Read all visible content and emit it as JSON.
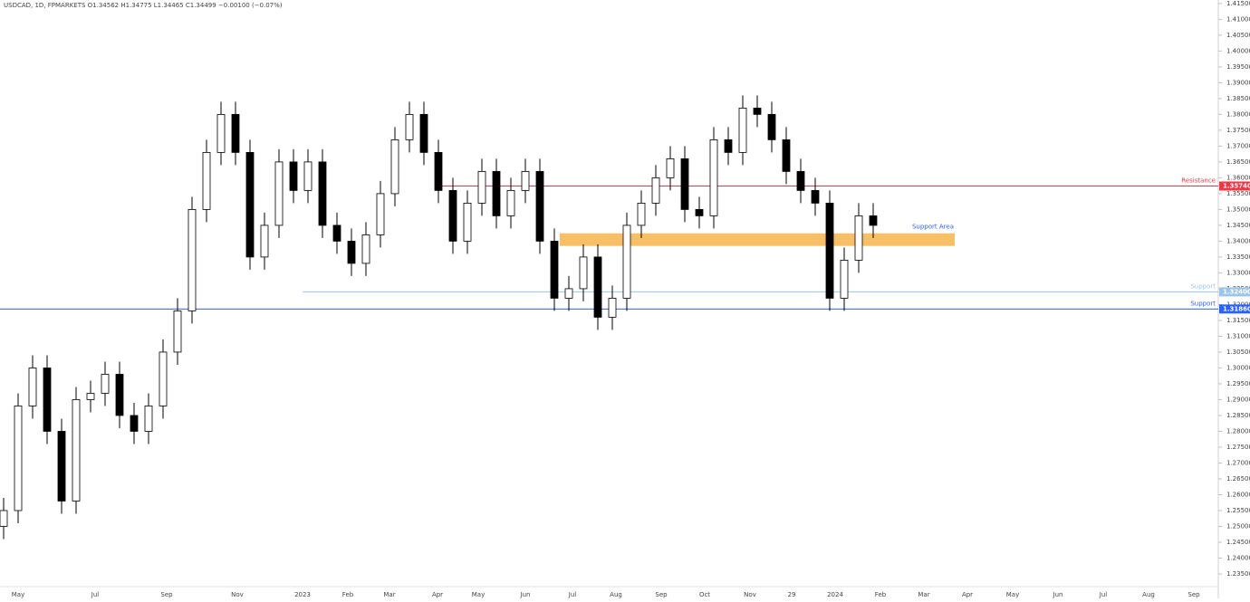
{
  "chart_data": {
    "type": "candlestick",
    "title": "USDCAD, 1D, FPMARKETS  O1.34562 H1.34775 L1.34465 C1.34499 −0.00100 (−0.07%)",
    "categories": [
      "May",
      "Jul",
      "Sep",
      "Nov",
      "2023",
      "Feb",
      "Mar",
      "Apr",
      "May",
      "Jun",
      "Jul",
      "Aug",
      "Sep",
      "Oct",
      "Nov",
      "29",
      "2024",
      "Feb",
      "Mar",
      "Apr",
      "May",
      "Jun",
      "Jul",
      "Aug",
      "Sep"
    ],
    "series": {
      "up_color": "#ffffff",
      "down_color": "#000000",
      "outline": "#000000",
      "open": [
        1.25,
        1.255,
        1.288,
        1.3,
        1.28,
        1.258,
        1.29,
        1.292,
        1.298,
        1.285,
        1.28,
        1.288,
        1.305,
        1.318,
        1.35,
        1.368,
        1.38,
        1.368,
        1.335,
        1.345,
        1.365,
        1.356,
        1.365,
        1.345,
        1.34,
        1.333,
        1.342,
        1.355,
        1.372,
        1.38,
        1.368,
        1.356,
        1.34,
        1.352,
        1.362,
        1.348,
        1.356,
        1.362,
        1.34,
        1.322,
        1.325,
        1.335,
        1.316,
        1.322,
        1.345,
        1.352,
        1.36,
        1.366,
        1.35,
        1.348,
        1.372,
        1.368,
        1.382,
        1.38,
        1.372,
        1.362,
        1.356,
        1.352,
        1.322,
        1.334,
        1.348
      ],
      "high": [
        1.259,
        1.292,
        1.304,
        1.304,
        1.284,
        1.294,
        1.296,
        1.302,
        1.302,
        1.289,
        1.292,
        1.309,
        1.322,
        1.354,
        1.372,
        1.384,
        1.384,
        1.372,
        1.349,
        1.369,
        1.369,
        1.369,
        1.369,
        1.349,
        1.344,
        1.346,
        1.359,
        1.376,
        1.384,
        1.384,
        1.372,
        1.36,
        1.356,
        1.366,
        1.366,
        1.36,
        1.366,
        1.366,
        1.344,
        1.329,
        1.339,
        1.339,
        1.326,
        1.349,
        1.356,
        1.364,
        1.37,
        1.37,
        1.354,
        1.376,
        1.376,
        1.386,
        1.386,
        1.384,
        1.376,
        1.366,
        1.36,
        1.356,
        1.338,
        1.352,
        1.352
      ],
      "low": [
        1.246,
        1.251,
        1.284,
        1.276,
        1.254,
        1.254,
        1.286,
        1.288,
        1.281,
        1.276,
        1.276,
        1.284,
        1.301,
        1.314,
        1.346,
        1.364,
        1.364,
        1.331,
        1.331,
        1.341,
        1.352,
        1.352,
        1.341,
        1.336,
        1.329,
        1.329,
        1.338,
        1.351,
        1.368,
        1.364,
        1.352,
        1.336,
        1.336,
        1.348,
        1.344,
        1.344,
        1.352,
        1.336,
        1.318,
        1.318,
        1.321,
        1.312,
        1.312,
        1.318,
        1.341,
        1.348,
        1.356,
        1.346,
        1.344,
        1.344,
        1.364,
        1.364,
        1.376,
        1.368,
        1.358,
        1.352,
        1.348,
        1.318,
        1.318,
        1.33,
        1.341
      ],
      "close": [
        1.255,
        1.288,
        1.3,
        1.28,
        1.258,
        1.29,
        1.292,
        1.298,
        1.285,
        1.28,
        1.288,
        1.305,
        1.318,
        1.35,
        1.368,
        1.38,
        1.368,
        1.335,
        1.345,
        1.365,
        1.356,
        1.365,
        1.345,
        1.34,
        1.333,
        1.342,
        1.355,
        1.372,
        1.38,
        1.368,
        1.356,
        1.34,
        1.352,
        1.362,
        1.348,
        1.356,
        1.362,
        1.34,
        1.322,
        1.325,
        1.335,
        1.316,
        1.322,
        1.345,
        1.352,
        1.36,
        1.366,
        1.35,
        1.348,
        1.372,
        1.368,
        1.382,
        1.38,
        1.372,
        1.362,
        1.356,
        1.352,
        1.322,
        1.334,
        1.348,
        1.345
      ]
    },
    "levels": [
      {
        "name": "Resistance",
        "value": 1.3574,
        "label": "1.35740",
        "color": "#f23645"
      },
      {
        "name": "Support",
        "value": 1.324,
        "label": "1.32400",
        "color": "#9ec5e8"
      },
      {
        "name": "Support",
        "value": 1.3186,
        "label": "1.31860",
        "color": "#2962ff"
      }
    ],
    "zone": {
      "name": "Support Area",
      "low": 1.3385,
      "high": 1.3425,
      "color": "#f7b955"
    },
    "ylim": [
      1.231,
      1.4161
    ],
    "yticks": [
      {
        "value": 1.235,
        "label": "1.23500"
      },
      {
        "value": 1.24,
        "label": "1.24000"
      },
      {
        "value": 1.245,
        "label": "1.24500"
      },
      {
        "value": 1.25,
        "label": "1.25000"
      },
      {
        "value": 1.255,
        "label": "1.25500"
      },
      {
        "value": 1.26,
        "label": "1.26000"
      },
      {
        "value": 1.265,
        "label": "1.26500"
      },
      {
        "value": 1.27,
        "label": "1.27000"
      },
      {
        "value": 1.275,
        "label": "1.27500"
      },
      {
        "value": 1.28,
        "label": "1.28000"
      },
      {
        "value": 1.285,
        "label": "1.28500"
      },
      {
        "value": 1.29,
        "label": "1.29000"
      },
      {
        "value": 1.295,
        "label": "1.29500"
      },
      {
        "value": 1.3,
        "label": "1.30000"
      },
      {
        "value": 1.305,
        "label": "1.30500"
      },
      {
        "value": 1.31,
        "label": "1.31000"
      },
      {
        "value": 1.315,
        "label": "1.31500"
      },
      {
        "value": 1.32,
        "label": "1.32000"
      },
      {
        "value": 1.325,
        "label": "1.32500"
      },
      {
        "value": 1.33,
        "label": "1.33000"
      },
      {
        "value": 1.335,
        "label": "1.33500"
      },
      {
        "value": 1.34,
        "label": "1.34000"
      },
      {
        "value": 1.345,
        "label": "1.34500"
      },
      {
        "value": 1.35,
        "label": "1.35000"
      },
      {
        "value": 1.355,
        "label": "1.35500"
      },
      {
        "value": 1.36,
        "label": "1.36000"
      },
      {
        "value": 1.365,
        "label": "1.36500"
      },
      {
        "value": 1.37,
        "label": "1.37000"
      },
      {
        "value": 1.375,
        "label": "1.37500"
      },
      {
        "value": 1.38,
        "label": "1.38000"
      },
      {
        "value": 1.385,
        "label": "1.38500"
      },
      {
        "value": 1.39,
        "label": "1.39000"
      },
      {
        "value": 1.395,
        "label": "1.39500"
      },
      {
        "value": 1.4,
        "label": "1.40000"
      },
      {
        "value": 1.405,
        "label": "1.40500"
      },
      {
        "value": 1.41,
        "label": "1.41000"
      },
      {
        "value": 1.415,
        "label": "1.41500"
      }
    ],
    "grid": false
  }
}
